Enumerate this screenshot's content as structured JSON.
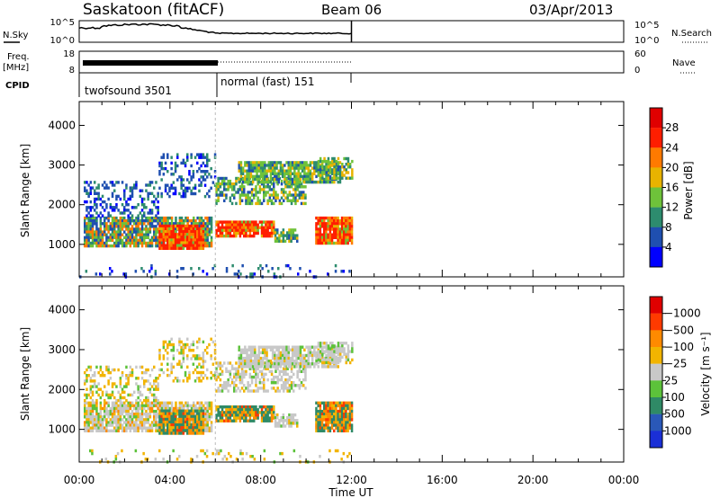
{
  "header": {
    "station": "Saskatoon (fitACF)",
    "beam": "Beam 06",
    "date": "03/Apr/2013"
  },
  "left_labels": {
    "nsky": "N.Sky",
    "freq": "Freq.",
    "freq_unit": "[MHz]",
    "cpid": "CPID"
  },
  "right_labels": {
    "nsearch": "N.Search",
    "nave": "Nave"
  },
  "noise_axis": {
    "top_left": "10^5",
    "bottom_left": "10^0",
    "top_right": "10^5",
    "bottom_right": "10^0"
  },
  "freq_axis": {
    "top_left": "18",
    "bottom_left": "8",
    "top_right": "60",
    "bottom_right": "0"
  },
  "cpid_segments": [
    {
      "label": "twofsound 3501",
      "start_hour": 0,
      "end_hour": 6
    },
    {
      "label": "normal (fast) 151",
      "start_hour": 6,
      "end_hour": 12
    }
  ],
  "chart_data": [
    {
      "type": "heatmap",
      "ylabel": "Slant Range [km]",
      "xlabel": "Time UT",
      "x_ticks": [
        "00:00",
        "04:00",
        "08:00",
        "12:00",
        "16:00",
        "20:00",
        "00:00"
      ],
      "x_tick_hours": [
        0,
        4,
        8,
        12,
        16,
        20,
        24
      ],
      "y_ticks": [
        1000,
        2000,
        3000,
        4000
      ],
      "ylim": [
        180,
        4600
      ],
      "xlim": [
        0,
        24
      ],
      "data_end_hour": 12,
      "colorbar": {
        "label": "Power [dB]",
        "tick_labels": [
          "4",
          "8",
          "12",
          "16",
          "20",
          "24",
          "28"
        ],
        "colors": [
          "#0000ff",
          "#1f4fb0",
          "#2d8c6e",
          "#6ec23a",
          "#e8b300",
          "#ff7a00",
          "#ff1e00",
          "#e00000"
        ]
      }
    },
    {
      "type": "heatmap",
      "ylabel": "Slant Range [km]",
      "xlabel": "Time UT",
      "x_ticks": [
        "00:00",
        "04:00",
        "08:00",
        "12:00",
        "16:00",
        "20:00",
        "00:00"
      ],
      "x_tick_hours": [
        0,
        4,
        8,
        12,
        16,
        20,
        24
      ],
      "y_ticks": [
        1000,
        2000,
        3000,
        4000
      ],
      "ylim": [
        180,
        4600
      ],
      "xlim": [
        0,
        24
      ],
      "data_end_hour": 12,
      "colorbar": {
        "label": "Velocity [m s⁻¹]",
        "tick_labels": [
          "1000",
          "500",
          "100",
          "25",
          "−25",
          "−100",
          "−500",
          "−1000"
        ],
        "colors": [
          "#1a2fd6",
          "#2a58b8",
          "#2f8a66",
          "#5cc23a",
          "#c8c8c8",
          "#f2b400",
          "#ff8a00",
          "#ff3a00",
          "#e00000"
        ]
      }
    }
  ],
  "time_label": "Time UT"
}
